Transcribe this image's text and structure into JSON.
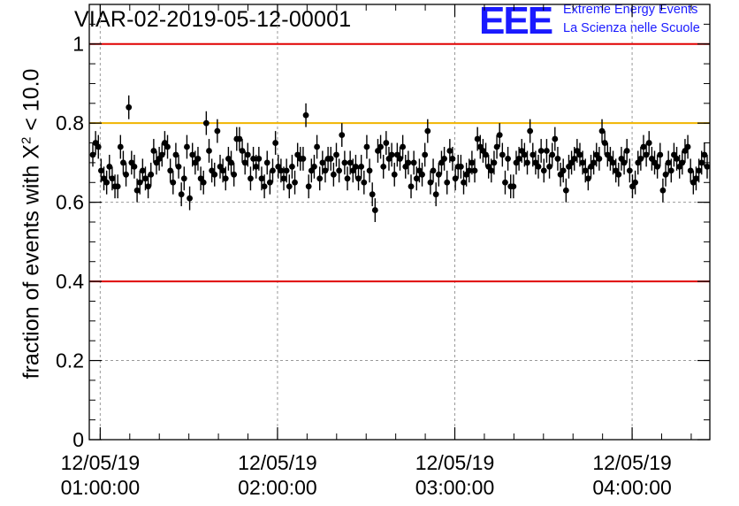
{
  "title": "VIAR-02-2019-05-12-00001",
  "logo": {
    "text": "EEE",
    "line1": "Extreme Energy Events",
    "line2": "La Scienza nelle Scuole",
    "color": "#1a1aff"
  },
  "colors": {
    "limit_line": "#e00000",
    "warning_line": "#f0b400",
    "points": "#000000",
    "grid": "#9a9a9a"
  },
  "chart_data": {
    "type": "scatter",
    "title": "VIAR-02-2019-05-12-00001",
    "ylabel": "fraction of events with χ² < 10.0",
    "ylabel_parts": {
      "pre": "fraction of events with X",
      "sup": "2",
      "post": " < 10.0"
    },
    "xlabel": "",
    "ylim": [
      0,
      1.1
    ],
    "xlim_minutes": [
      0,
      210
    ],
    "y_ticks": [
      "0",
      "0.2",
      "0.4",
      "0.6",
      "0.8",
      "1"
    ],
    "x_ticks": [
      {
        "minute": 3.7,
        "date": "12/05/19",
        "time": "01:00:00"
      },
      {
        "minute": 63.7,
        "date": "12/05/19",
        "time": "02:00:00"
      },
      {
        "minute": 123.7,
        "date": "12/05/19",
        "time": "03:00:00"
      },
      {
        "minute": 183.7,
        "date": "12/05/19",
        "time": "04:00:00"
      }
    ],
    "grid": true,
    "reference_lines": [
      {
        "y": 1.0,
        "color": "#e00000"
      },
      {
        "y": 0.8,
        "color": "#f0b400"
      },
      {
        "y": 0.4,
        "color": "#e00000"
      }
    ],
    "error": 0.03,
    "values": [
      0.72,
      0.75,
      0.74,
      0.68,
      0.66,
      0.65,
      0.69,
      0.66,
      0.64,
      0.64,
      0.74,
      0.7,
      0.67,
      0.84,
      0.7,
      0.69,
      0.63,
      0.65,
      0.68,
      0.66,
      0.64,
      0.67,
      0.73,
      0.7,
      0.71,
      0.72,
      0.75,
      0.74,
      0.68,
      0.65,
      0.72,
      0.69,
      0.62,
      0.66,
      0.74,
      0.61,
      0.72,
      0.7,
      0.71,
      0.66,
      0.65,
      0.8,
      0.73,
      0.68,
      0.67,
      0.78,
      0.69,
      0.68,
      0.66,
      0.71,
      0.7,
      0.67,
      0.76,
      0.76,
      0.73,
      0.7,
      0.72,
      0.66,
      0.71,
      0.69,
      0.71,
      0.66,
      0.64,
      0.7,
      0.65,
      0.68,
      0.75,
      0.69,
      0.68,
      0.66,
      0.68,
      0.64,
      0.69,
      0.65,
      0.72,
      0.71,
      0.71,
      0.82,
      0.64,
      0.68,
      0.69,
      0.74,
      0.66,
      0.7,
      0.68,
      0.71,
      0.71,
      0.67,
      0.72,
      0.68,
      0.77,
      0.7,
      0.66,
      0.7,
      0.68,
      0.69,
      0.66,
      0.69,
      0.65,
      0.74,
      0.68,
      0.62,
      0.58,
      0.73,
      0.74,
      0.69,
      0.75,
      0.71,
      0.72,
      0.67,
      0.72,
      0.71,
      0.74,
      0.69,
      0.7,
      0.64,
      0.7,
      0.66,
      0.68,
      0.67,
      0.72,
      0.78,
      0.65,
      0.68,
      0.62,
      0.67,
      0.7,
      0.71,
      0.65,
      0.73,
      0.71,
      0.66,
      0.69,
      0.69,
      0.65,
      0.67,
      0.68,
      0.7,
      0.68,
      0.76,
      0.74,
      0.73,
      0.72,
      0.69,
      0.68,
      0.7,
      0.74,
      0.77,
      0.72,
      0.65,
      0.71,
      0.64,
      0.64,
      0.7,
      0.71,
      0.73,
      0.72,
      0.7,
      0.78,
      0.72,
      0.7,
      0.69,
      0.73,
      0.68,
      0.73,
      0.69,
      0.72,
      0.76,
      0.71,
      0.67,
      0.68,
      0.63,
      0.69,
      0.7,
      0.71,
      0.73,
      0.72,
      0.7,
      0.68,
      0.66,
      0.69,
      0.7,
      0.72,
      0.71,
      0.78,
      0.75,
      0.72,
      0.71,
      0.7,
      0.68,
      0.67,
      0.71,
      0.7,
      0.73,
      0.68,
      0.64,
      0.65,
      0.7,
      0.71,
      0.74,
      0.72,
      0.75,
      0.71,
      0.7,
      0.69,
      0.72,
      0.63,
      0.67,
      0.7,
      0.68,
      0.72,
      0.71,
      0.69,
      0.7,
      0.73,
      0.74,
      0.68,
      0.65,
      0.66,
      0.68,
      0.7,
      0.72,
      0.69
    ]
  }
}
